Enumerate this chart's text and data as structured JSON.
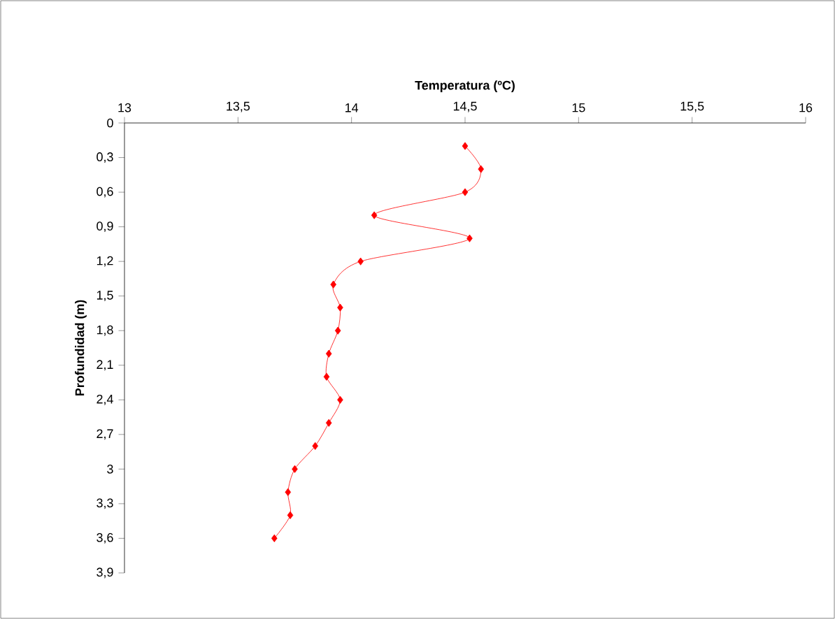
{
  "chart_data": {
    "type": "line",
    "xlabel": "Temperatura (ºC)",
    "ylabel": "Profundidad (m)",
    "series": [
      {
        "color": "#ff0000",
        "x": [
          14.5,
          14.57,
          14.5,
          14.1,
          14.52,
          14.04,
          13.92,
          13.95,
          13.94,
          13.9,
          13.89,
          13.95,
          13.9,
          13.84,
          13.75,
          13.72,
          13.73,
          13.66
        ],
        "values": [
          0.2,
          0.4,
          0.6,
          0.8,
          1.0,
          1.2,
          1.4,
          1.6,
          1.8,
          2.0,
          2.2,
          2.4,
          2.6,
          2.8,
          3.0,
          3.2,
          3.4,
          3.6
        ]
      }
    ],
    "xlim": [
      13,
      16
    ],
    "xticks": [
      13,
      {
        "value": 13.5,
        "label": "13,5"
      },
      14,
      {
        "value": 14.5,
        "label": "14,5"
      },
      15,
      {
        "value": 15.5,
        "label": "15,5"
      },
      16
    ],
    "ylim": [
      3.9,
      0
    ],
    "yticks": [
      0,
      {
        "value": 0.3,
        "label": "0,3"
      },
      {
        "value": 0.6,
        "label": "0,6"
      },
      {
        "value": 0.9,
        "label": "0,9"
      },
      {
        "value": 1.2,
        "label": "1,2"
      },
      {
        "value": 1.5,
        "label": "1,5"
      },
      {
        "value": 1.8,
        "label": "1,8"
      },
      {
        "value": 2.1,
        "label": "2,1"
      },
      {
        "value": 2.4,
        "label": "2,4"
      },
      {
        "value": 2.7,
        "label": "2,7"
      },
      3,
      {
        "value": 3.3,
        "label": "3,3"
      },
      {
        "value": 3.6,
        "label": "3,6"
      },
      {
        "value": 3.9,
        "label": "3,9"
      }
    ],
    "grid": false,
    "marker": "diamond",
    "line_style": "solid"
  }
}
